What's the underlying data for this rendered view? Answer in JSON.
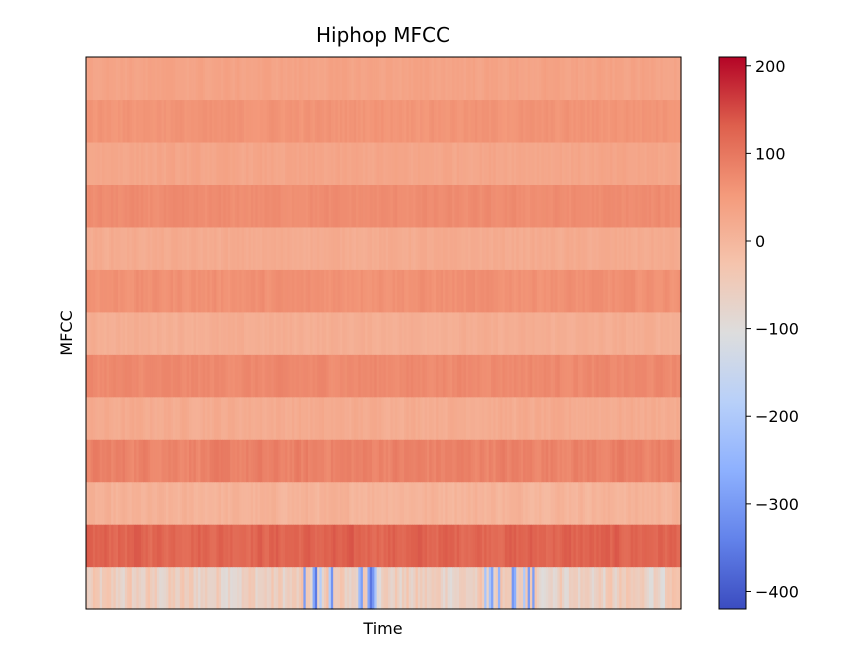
{
  "chart_data": {
    "type": "heatmap",
    "title": "Hiphop MFCC",
    "xlabel": "Time",
    "ylabel": "MFCC",
    "colormap": "coolwarm",
    "colorbar": {
      "range": [
        -420,
        210
      ],
      "ticks": [
        200,
        100,
        0,
        -100,
        -200,
        -300,
        -400
      ],
      "tick_labels": [
        "200",
        "100",
        "0",
        "−100",
        "−200",
        "−300",
        "−400"
      ]
    },
    "n_frames": 260,
    "rows_bottom_to_top": [
      {
        "coefficient": 1,
        "mean": -60,
        "variability": 60
      },
      {
        "coefficient": 2,
        "mean": 125,
        "variability": 20
      },
      {
        "coefficient": 3,
        "mean": 5,
        "variability": 15
      },
      {
        "coefficient": 4,
        "mean": 85,
        "variability": 18
      },
      {
        "coefficient": 5,
        "mean": 20,
        "variability": 12
      },
      {
        "coefficient": 6,
        "mean": 75,
        "variability": 12
      },
      {
        "coefficient": 7,
        "mean": 15,
        "variability": 10
      },
      {
        "coefficient": 8,
        "mean": 65,
        "variability": 12
      },
      {
        "coefficient": 9,
        "mean": 20,
        "variability": 10
      },
      {
        "coefficient": 10,
        "mean": 70,
        "variability": 10
      },
      {
        "coefficient": 11,
        "mean": 30,
        "variability": 10
      },
      {
        "coefficient": 12,
        "mean": 60,
        "variability": 10
      },
      {
        "coefficient": 13,
        "mean": 35,
        "variability": 10
      }
    ],
    "dips_in_row_1": [
      {
        "frames": [
          95,
          108
        ],
        "min_value": -380
      },
      {
        "frames": [
          118,
          126
        ],
        "min_value": -380
      },
      {
        "frames": [
          172,
          180
        ],
        "min_value": -300
      },
      {
        "frames": [
          186,
          196
        ],
        "min_value": -320
      }
    ]
  }
}
